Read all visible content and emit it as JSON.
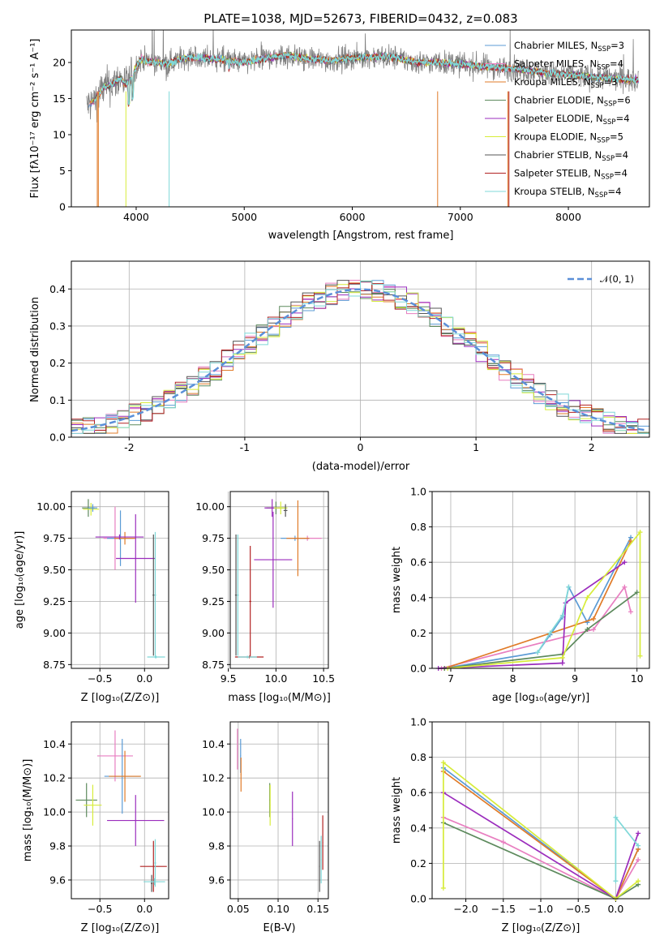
{
  "chart_data": [
    {
      "type": "line",
      "title": "PLATE=1038, MJD=52673, FIBERID=0432, z=0.083",
      "xlabel": "wavelength [Angstrom, rest frame]",
      "ylabel": "Flux [fλ10⁻¹⁷ erg cm⁻² s⁻¹ A⁻¹]",
      "xlim": [
        3400,
        8750
      ],
      "ylim": [
        0,
        24.5
      ],
      "xticks": [
        4000,
        5000,
        6000,
        7000,
        8000
      ],
      "yticks": [
        0,
        5,
        10,
        15,
        20
      ],
      "grid": false,
      "legend_position": "top-right",
      "continuum": {
        "x": [
          3540,
          3600,
          3650,
          3700,
          3750,
          3800,
          3850,
          3900,
          3950,
          4000,
          4050,
          4100,
          4200,
          4300,
          4400,
          4500,
          4600,
          4700,
          4800,
          4900,
          5000,
          5200,
          5400,
          5600,
          5800,
          6000,
          6200,
          6400,
          6600,
          6800,
          7000,
          7200,
          7400,
          7600,
          7800,
          8000,
          8200,
          8400,
          8600
        ],
        "y": [
          14.0,
          14.5,
          15.5,
          16.5,
          16.8,
          17.2,
          17.8,
          17.0,
          17.5,
          19.5,
          20.5,
          20.2,
          20.0,
          19.8,
          20.5,
          20.7,
          20.6,
          20.5,
          20.4,
          20.2,
          20.0,
          20.6,
          21.0,
          20.5,
          20.3,
          20.6,
          20.8,
          20.7,
          20.0,
          20.0,
          19.8,
          19.5,
          19.2,
          19.0,
          18.5,
          18.3,
          18.0,
          17.8,
          17.6
        ]
      },
      "observed_noise_sigma": 1.2,
      "series": [
        {
          "name": "Chabrier MILES, N_SSP=3",
          "color": "#5b9bd5"
        },
        {
          "name": "Salpeter MILES, N_SSP=4",
          "color": "#e87ec0"
        },
        {
          "name": "Kroupa MILES, N_SSP=3",
          "color": "#e07b28"
        },
        {
          "name": "Chabrier ELODIE, N_SSP=6",
          "color": "#5d8a5d"
        },
        {
          "name": "Salpeter ELODIE, N_SSP=4",
          "color": "#9b2dbd"
        },
        {
          "name": "Kroupa ELODIE, N_SSP=5",
          "color": "#d7ec3a"
        },
        {
          "name": "Chabrier STELIB, N_SSP=4",
          "color": "#555555"
        },
        {
          "name": "Salpeter STELIB, N_SSP=4",
          "color": "#b22222"
        },
        {
          "name": "Kroupa STELIB, N_SSP=4",
          "color": "#7fd8d8"
        }
      ]
    },
    {
      "type": "step",
      "title": "",
      "xlabel": "(data-model)/error",
      "ylabel": "Normed distribution",
      "xlim": [
        -2.5,
        2.5
      ],
      "ylim": [
        0,
        0.475
      ],
      "xticks": [
        -2,
        -1,
        0,
        1,
        2
      ],
      "yticks": [
        0.0,
        0.1,
        0.2,
        0.3,
        0.4
      ],
      "grid": true,
      "legend_position": "top-right",
      "normal_curve": {
        "label": "𝒩(0, 1)",
        "color": "#5b8fd8"
      },
      "bin_width": 0.1
    },
    {
      "type": "errorbar",
      "xlabel": "Z [log₁₀(Z/Z⊙)]",
      "ylabel": "age  [log₁₀(age/yr)]",
      "xlim": [
        -0.82,
        0.27
      ],
      "ylim": [
        8.72,
        10.12
      ],
      "xticks": [
        -0.5,
        0.0
      ],
      "xticklabels": [
        "−0.5",
        "0.0"
      ],
      "yticks": [
        8.75,
        9.0,
        9.25,
        9.5,
        9.75,
        10.0
      ],
      "yticklabels": [
        "8.75",
        "9.00",
        "9.25",
        "9.50",
        "9.75",
        "10.00"
      ],
      "points": [
        {
          "x": -0.63,
          "y": 9.99,
          "xe": 0.07,
          "ye": 0.07,
          "c": "#5d8a5d"
        },
        {
          "x": -0.6,
          "y": 9.98,
          "xe": 0.09,
          "ye": 0.05,
          "c": "#d7ec3a"
        },
        {
          "x": -0.58,
          "y": 9.99,
          "xe": 0.05,
          "ye": 0.03,
          "c": "#5b9bd5"
        },
        {
          "x": -0.33,
          "y": 9.75,
          "xe": 0.13,
          "ye": 0.25,
          "c": "#e87ec0"
        },
        {
          "x": -0.27,
          "y": 9.75,
          "xe": 0.15,
          "ye": 0.22,
          "c": "#5b9bd5"
        },
        {
          "x": -0.22,
          "y": 9.75,
          "xe": 0.12,
          "ye": 0.05,
          "c": "#e07b28"
        },
        {
          "x": -0.28,
          "y": 9.76,
          "xe": 0.27,
          "ye": 0.02,
          "c": "#9b2dbd"
        },
        {
          "x": -0.1,
          "y": 9.59,
          "xe": 0.22,
          "ye": 0.35,
          "c": "#9b2dbd"
        },
        {
          "x": 0.1,
          "y": 9.3,
          "xe": 0.01,
          "ye": 0.48,
          "c": "#555555"
        },
        {
          "x": 0.13,
          "y": 8.81,
          "xe": 0.1,
          "ye": 0.01,
          "c": "#7fd8d8"
        },
        {
          "x": 0.12,
          "y": 9.3,
          "xe": 0.01,
          "ye": 0.5,
          "c": "#7fd8d8"
        }
      ]
    },
    {
      "type": "errorbar",
      "xlabel": "mass [log₁₀(M/M⊙)]",
      "ylabel": "",
      "xlim": [
        9.52,
        10.55
      ],
      "ylim": [
        8.72,
        10.12
      ],
      "xticks": [
        9.5,
        10.0,
        10.5
      ],
      "xticklabels": [
        "9.5",
        "10.0",
        "10.5"
      ],
      "yticks": [
        8.75,
        9.0,
        9.25,
        9.5,
        9.75,
        10.0
      ],
      "yticklabels": [
        "8.75",
        "9.00",
        "9.25",
        "9.50",
        "9.75",
        "10.00"
      ],
      "points": [
        {
          "x": 10.0,
          "y": 9.99,
          "xe": 0.1,
          "ye": 0.05,
          "c": "#5d8a5d"
        },
        {
          "x": 9.96,
          "y": 9.99,
          "xe": 0.08,
          "ye": 0.07,
          "c": "#9b2dbd"
        },
        {
          "x": 10.05,
          "y": 9.99,
          "xe": 0.07,
          "ye": 0.05,
          "c": "#d7ec3a"
        },
        {
          "x": 10.1,
          "y": 9.97,
          "xe": 0.02,
          "ye": 0.05,
          "c": "#555555"
        },
        {
          "x": 10.33,
          "y": 9.75,
          "xe": 0.15,
          "ye": 0.02,
          "c": "#e87ec0"
        },
        {
          "x": 10.2,
          "y": 9.75,
          "xe": 0.15,
          "ye": 0.02,
          "c": "#5b9bd5"
        },
        {
          "x": 10.23,
          "y": 9.75,
          "xe": 0.12,
          "ye": 0.3,
          "c": "#e07b28"
        },
        {
          "x": 9.97,
          "y": 9.58,
          "xe": 0.2,
          "ye": 0.38,
          "c": "#9b2dbd"
        },
        {
          "x": 9.73,
          "y": 9.25,
          "xe": 0.01,
          "ye": 0.44,
          "c": "#b22222"
        },
        {
          "x": 9.58,
          "y": 9.3,
          "xe": 0.01,
          "ye": 0.48,
          "c": "#555555"
        },
        {
          "x": 9.72,
          "y": 8.81,
          "xe": 0.15,
          "ye": 0.01,
          "c": "#b22222"
        },
        {
          "x": 9.7,
          "y": 8.81,
          "xe": 0.1,
          "ye": 0.01,
          "c": "#7fd8d8"
        },
        {
          "x": 9.6,
          "y": 9.3,
          "xe": 0.01,
          "ye": 0.48,
          "c": "#7fd8d8"
        }
      ]
    },
    {
      "type": "line",
      "xlabel": "age  [log₁₀(age/yr)]",
      "ylabel": "mass weight",
      "xlim": [
        6.7,
        10.2
      ],
      "ylim": [
        0,
        1.0
      ],
      "xticks": [
        7,
        8,
        9,
        10
      ],
      "yticks": [
        0.0,
        0.2,
        0.4,
        0.6,
        0.8,
        1.0
      ],
      "grid": true,
      "series": [
        {
          "c": "#5b9bd5",
          "x": [
            6.9,
            8.4,
            8.6,
            8.8,
            8.9,
            9.2,
            9.9
          ],
          "y": [
            0.0,
            0.09,
            0.19,
            0.29,
            0.46,
            0.26,
            0.74
          ]
        },
        {
          "c": "#e87ec0",
          "x": [
            6.85,
            9.3,
            9.8,
            9.9
          ],
          "y": [
            0.0,
            0.22,
            0.46,
            0.32
          ]
        },
        {
          "c": "#e07b28",
          "x": [
            6.9,
            9.3,
            9.9
          ],
          "y": [
            0.0,
            0.28,
            0.72
          ]
        },
        {
          "c": "#5d8a5d",
          "x": [
            6.9,
            8.8,
            9.2,
            10.0
          ],
          "y": [
            0.0,
            0.08,
            0.22,
            0.43
          ]
        },
        {
          "c": "#9b2dbd",
          "x": [
            6.8,
            8.8,
            8.85,
            9.8
          ],
          "y": [
            0.0,
            0.03,
            0.37,
            0.6
          ]
        },
        {
          "c": "#d7ec3a",
          "x": [
            6.95,
            8.8,
            9.2,
            10.05,
            10.05
          ],
          "y": [
            0.0,
            0.06,
            0.4,
            0.77,
            0.07
          ]
        },
        {
          "c": "#7fd8d8",
          "x": [
            8.4,
            8.6,
            8.8,
            8.9
          ],
          "y": [
            0.09,
            0.2,
            0.3,
            0.46
          ]
        }
      ]
    },
    {
      "type": "errorbar",
      "xlabel": "Z [log₁₀(Z/Z⊙)]",
      "ylabel": "mass [log₁₀(M/M⊙)]",
      "xlim": [
        -0.82,
        0.27
      ],
      "ylim": [
        9.49,
        10.53
      ],
      "xticks": [
        -0.5,
        0.0
      ],
      "xticklabels": [
        "−0.5",
        "0.0"
      ],
      "yticks": [
        9.6,
        9.8,
        10.0,
        10.2,
        10.4
      ],
      "yticklabels": [
        "9.6",
        "9.8",
        "10.0",
        "10.2",
        "10.4"
      ],
      "points": [
        {
          "x": -0.65,
          "y": 10.07,
          "xe": 0.12,
          "ye": 0.1,
          "c": "#5d8a5d"
        },
        {
          "x": -0.58,
          "y": 10.04,
          "xe": 0.1,
          "ye": 0.12,
          "c": "#d7ec3a"
        },
        {
          "x": -0.33,
          "y": 10.33,
          "xe": 0.2,
          "ye": 0.15,
          "c": "#e87ec0"
        },
        {
          "x": -0.25,
          "y": 10.21,
          "xe": 0.2,
          "ye": 0.22,
          "c": "#5b9bd5"
        },
        {
          "x": -0.22,
          "y": 10.21,
          "xe": 0.18,
          "ye": 0.15,
          "c": "#e07b28"
        },
        {
          "x": -0.1,
          "y": 9.95,
          "xe": 0.32,
          "ye": 0.15,
          "c": "#9b2dbd"
        },
        {
          "x": 0.1,
          "y": 9.68,
          "xe": 0.15,
          "ye": 0.15,
          "c": "#b22222"
        },
        {
          "x": 0.08,
          "y": 9.58,
          "xe": 0.01,
          "ye": 0.05,
          "c": "#555555"
        },
        {
          "x": 0.11,
          "y": 9.59,
          "xe": 0.12,
          "ye": 0.02,
          "c": "#7fd8d8"
        },
        {
          "x": 0.12,
          "y": 9.7,
          "xe": 0.01,
          "ye": 0.14,
          "c": "#7fd8d8"
        }
      ]
    },
    {
      "type": "errorbar",
      "xlabel": "E(B-V)",
      "ylabel": "",
      "xlim": [
        0.04,
        0.163
      ],
      "ylim": [
        9.49,
        10.53
      ],
      "xticks": [
        0.05,
        0.1,
        0.15
      ],
      "xticklabels": [
        "0.05",
        "0.10",
        "0.15"
      ],
      "yticks": [
        9.6,
        9.8,
        10.0,
        10.2,
        10.4
      ],
      "yticklabels": [
        "9.6",
        "9.8",
        "10.0",
        "10.2",
        "10.4"
      ],
      "points": [
        {
          "x": 0.049,
          "y": 10.37,
          "xe": 0.0005,
          "ye": 0.12,
          "c": "#e87ec0"
        },
        {
          "x": 0.053,
          "y": 10.33,
          "xe": 0.0005,
          "ye": 0.1,
          "c": "#5b9bd5"
        },
        {
          "x": 0.0535,
          "y": 10.22,
          "xe": 0.0005,
          "ye": 0.1,
          "c": "#e07b28"
        },
        {
          "x": 0.0895,
          "y": 10.07,
          "xe": 0.0005,
          "ye": 0.1,
          "c": "#5d8a5d"
        },
        {
          "x": 0.09,
          "y": 10.04,
          "xe": 0.0005,
          "ye": 0.12,
          "c": "#d7ec3a"
        },
        {
          "x": 0.118,
          "y": 9.96,
          "xe": 0.0005,
          "ye": 0.16,
          "c": "#9b2dbd"
        },
        {
          "x": 0.152,
          "y": 9.68,
          "xe": 0.0005,
          "ye": 0.15,
          "c": "#555555"
        },
        {
          "x": 0.156,
          "y": 9.82,
          "xe": 0.0005,
          "ye": 0.16,
          "c": "#b22222"
        },
        {
          "x": 0.154,
          "y": 9.72,
          "xe": 0.0005,
          "ye": 0.14,
          "c": "#7fd8d8"
        }
      ]
    },
    {
      "type": "line",
      "xlabel": "Z [log₁₀(Z/Z⊙)]",
      "ylabel": "mass weight",
      "xlim": [
        -2.45,
        0.45
      ],
      "ylim": [
        0,
        1.0
      ],
      "xticks": [
        -2.0,
        -1.5,
        -1.0,
        -0.5,
        0.0
      ],
      "xticklabels": [
        "−2.0",
        "−1.5",
        "−1.0",
        "−0.5",
        "0.0"
      ],
      "yticks": [
        0.0,
        0.2,
        0.4,
        0.6,
        0.8,
        1.0
      ],
      "grid": true,
      "series": [
        {
          "c": "#5b9bd5",
          "x": [
            -2.3,
            0.0,
            0.3
          ],
          "y": [
            0.74,
            0.0,
            0.28
          ]
        },
        {
          "c": "#e87ec0",
          "x": [
            -2.3,
            -1.5,
            0.0,
            0.3
          ],
          "y": [
            0.46,
            0.32,
            0.0,
            0.22
          ]
        },
        {
          "c": "#e07b28",
          "x": [
            -2.3,
            0.0,
            0.3
          ],
          "y": [
            0.72,
            0.0,
            0.28
          ]
        },
        {
          "c": "#5d8a5d",
          "x": [
            -2.3,
            0.0,
            0.3
          ],
          "y": [
            0.43,
            0.0,
            0.08
          ]
        },
        {
          "c": "#9b2dbd",
          "x": [
            -2.3,
            0.0,
            0.3
          ],
          "y": [
            0.6,
            0.0,
            0.37
          ]
        },
        {
          "c": "#d7ec3a",
          "x": [
            -2.3,
            -2.3,
            0.0,
            0.3
          ],
          "y": [
            0.06,
            0.77,
            0.0,
            0.1
          ]
        },
        {
          "c": "#7fd8d8",
          "x": [
            0.0,
            0.0,
            0.3
          ],
          "y": [
            0.1,
            0.46,
            0.3
          ]
        }
      ]
    }
  ]
}
